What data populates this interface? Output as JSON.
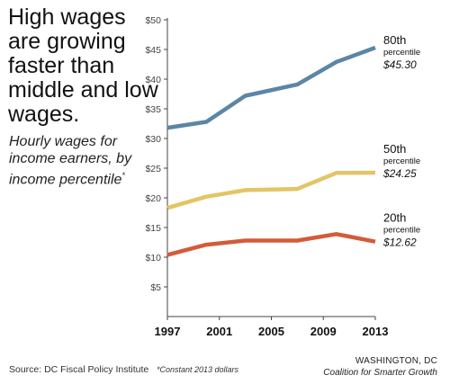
{
  "headline": "High wages are growing faster than middle and low wages.",
  "subtitle": "Hourly wages for income earners, by income percentile",
  "subtitle_mark": "*",
  "source": "Source: DC Fiscal Policy Institute",
  "footnote": "*Constant 2013 dollars",
  "org_city": "WASHINGTON, DC",
  "org_name": "Coalition for Smarter Growth",
  "chart_data": {
    "type": "line",
    "x_ticks": [
      "1997",
      "2001",
      "2005",
      "2009",
      "2013"
    ],
    "y_ticks": [
      "$5",
      "$10",
      "$15",
      "$20",
      "$25",
      "$30",
      "$35",
      "$40",
      "$45",
      "$50"
    ],
    "ylim": [
      0,
      50
    ],
    "xlim": [
      1997,
      2013
    ],
    "grid": false,
    "series": [
      {
        "name": "80th",
        "sub": "percentile",
        "value_label": "$45.30",
        "color": "#5b86a6",
        "points": [
          [
            1997,
            31.8
          ],
          [
            2000,
            32.8
          ],
          [
            2003,
            37.2
          ],
          [
            2007,
            39.1
          ],
          [
            2010,
            42.9
          ],
          [
            2013,
            45.3
          ]
        ]
      },
      {
        "name": "50th",
        "sub": "percentile",
        "value_label": "$24.25",
        "color": "#e3c566",
        "points": [
          [
            1997,
            18.3
          ],
          [
            2000,
            20.2
          ],
          [
            2003,
            21.3
          ],
          [
            2007,
            21.5
          ],
          [
            2010,
            24.2
          ],
          [
            2013,
            24.25
          ]
        ]
      },
      {
        "name": "20th",
        "sub": "percentile",
        "value_label": "$12.62",
        "color": "#d35b39",
        "points": [
          [
            1997,
            10.4
          ],
          [
            2000,
            12.1
          ],
          [
            2003,
            12.8
          ],
          [
            2007,
            12.8
          ],
          [
            2010,
            13.9
          ],
          [
            2013,
            12.62
          ]
        ]
      }
    ]
  }
}
